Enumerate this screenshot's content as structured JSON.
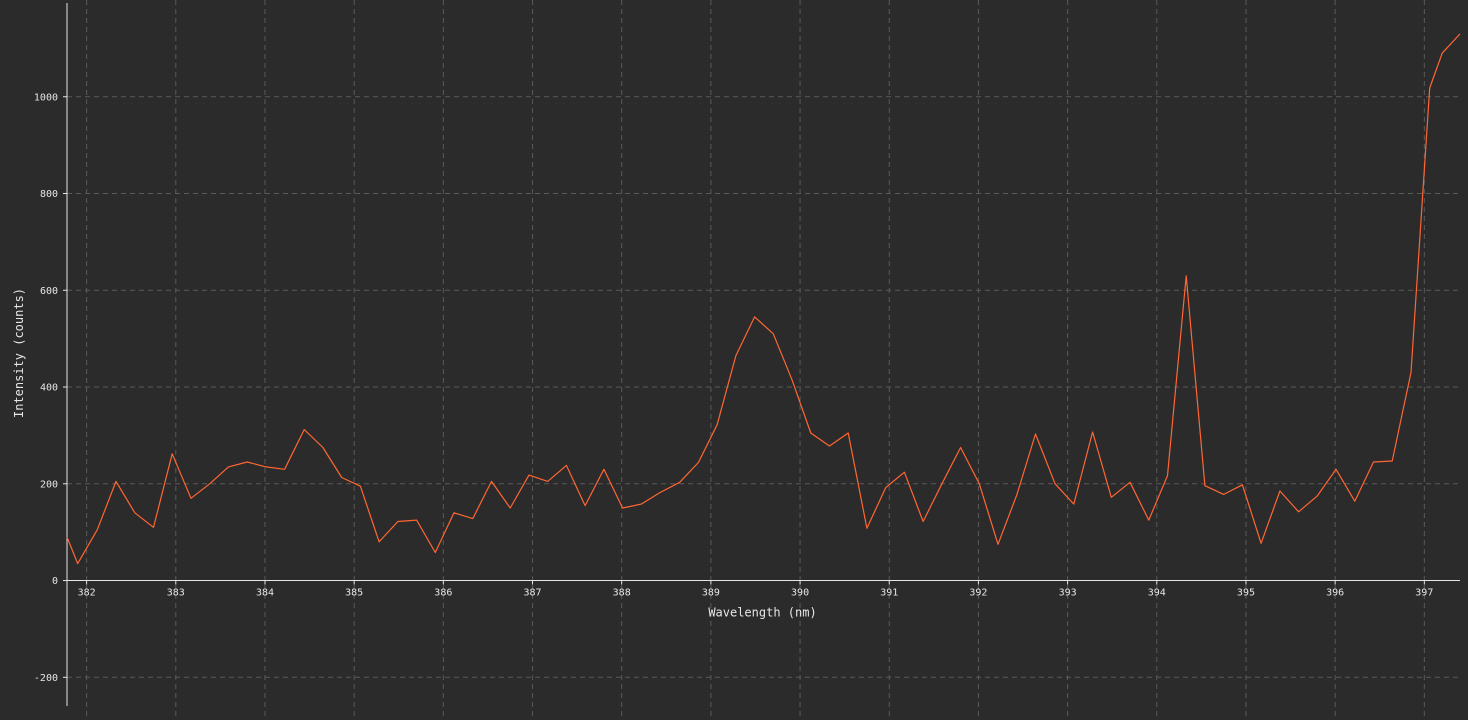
{
  "theme": {
    "background": "#2b2b2b",
    "axis_color": "#e6e6e6",
    "grid_color": "#5a5a5a",
    "text_color": "#e6e6e6",
    "series_color": "#ff6633"
  },
  "chart_data": {
    "type": "line",
    "title": "",
    "xlabel": "Wavelength (nm)",
    "ylabel": "Intensity (counts)",
    "xlim": [
      381.78,
      397.4
    ],
    "ylim": [
      -280,
      1200
    ],
    "x_ticks": [
      382,
      383,
      384,
      385,
      386,
      387,
      388,
      389,
      390,
      391,
      392,
      393,
      394,
      395,
      396,
      397
    ],
    "y_ticks": [
      -200,
      0,
      200,
      400,
      600,
      800,
      1000
    ],
    "grid": true,
    "legend": "none",
    "series": [
      {
        "x": [
          381.78,
          381.9,
          382.12,
          382.33,
          382.54,
          382.75,
          382.96,
          383.17,
          383.38,
          383.59,
          383.8,
          384.01,
          384.22,
          384.44,
          384.65,
          384.86,
          385.07,
          385.28,
          385.49,
          385.7,
          385.91,
          386.12,
          386.33,
          386.54,
          386.75,
          386.96,
          387.17,
          387.38,
          387.59,
          387.8,
          388.01,
          388.22,
          388.43,
          388.65,
          388.86,
          389.07,
          389.28,
          389.49,
          389.7,
          389.91,
          390.12,
          390.33,
          390.54,
          390.75,
          390.96,
          391.17,
          391.38,
          391.59,
          391.8,
          392.01,
          392.22,
          392.43,
          392.64,
          392.86,
          393.07,
          393.28,
          393.49,
          393.7,
          393.91,
          394.12,
          394.33,
          394.54,
          394.75,
          394.96,
          395.17,
          395.38,
          395.59,
          395.8,
          396.01,
          396.22,
          396.43,
          396.64,
          396.85,
          397.06,
          397.2,
          397.4
        ],
        "y": [
          90,
          35,
          105,
          205,
          140,
          110,
          262,
          170,
          200,
          235,
          245,
          235,
          230,
          312,
          275,
          213,
          195,
          80,
          122,
          125,
          58,
          140,
          128,
          205,
          150,
          218,
          205,
          238,
          155,
          230,
          150,
          158,
          182,
          203,
          244,
          322,
          465,
          545,
          510,
          415,
          305,
          278,
          305,
          108,
          192,
          224,
          122,
          200,
          275,
          200,
          75,
          177,
          303,
          200,
          158,
          307,
          172,
          203,
          125,
          217,
          630,
          196,
          178,
          198,
          77,
          185,
          142,
          175,
          230,
          164,
          245,
          247,
          430,
          1018,
          1090,
          1130
        ]
      }
    ]
  }
}
